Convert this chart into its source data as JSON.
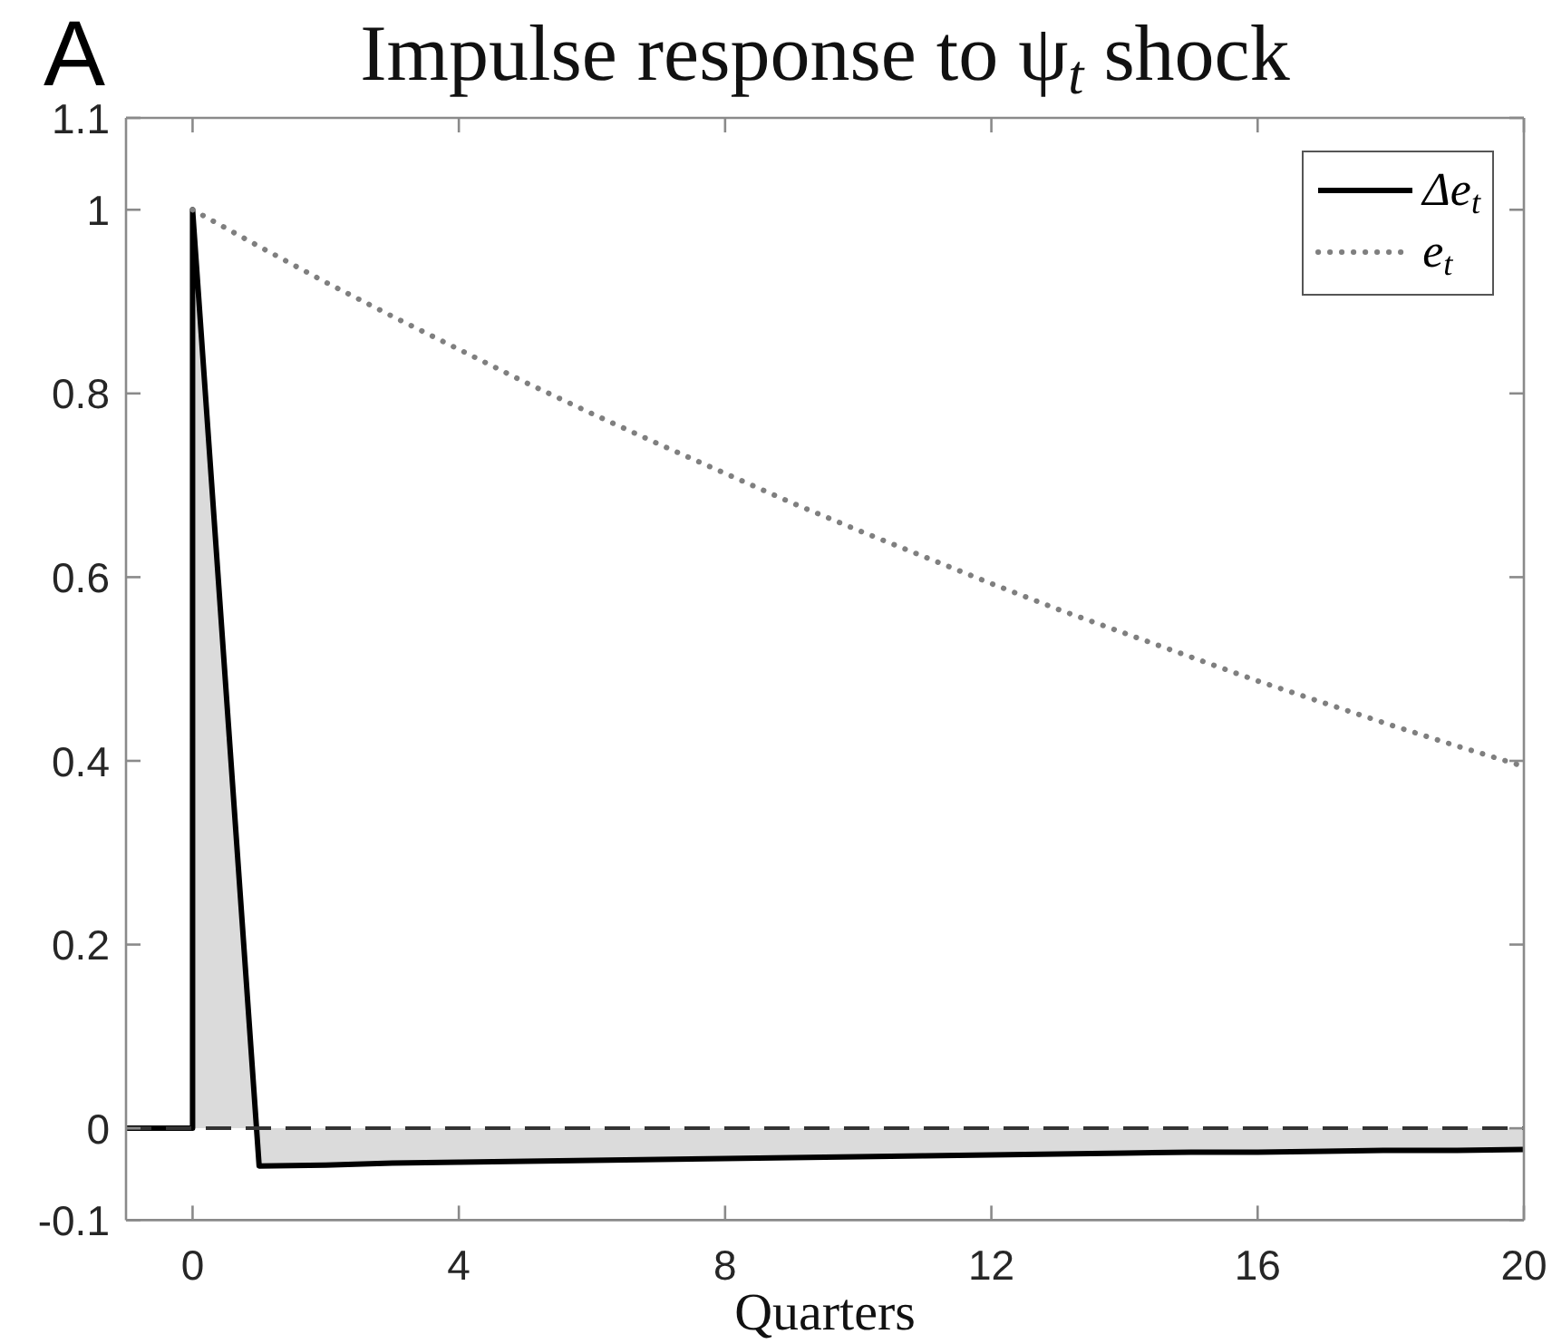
{
  "chart_data": {
    "type": "line",
    "title": "Impulse response to ψ$_{t}$ shock",
    "xlabel": "Quarters",
    "annotations": [
      "A"
    ],
    "series": [
      {
        "name": "Δe$_{t}$",
        "type": "area",
        "color": "#000000",
        "line_style": "solid",
        "x": [
          -1,
          0,
          0,
          1,
          2,
          3,
          4,
          5,
          6,
          7,
          8,
          9,
          10,
          11,
          12,
          13,
          14,
          15,
          16,
          17,
          18,
          19,
          20
        ],
        "values": [
          0,
          0,
          1,
          -0.041,
          -0.04,
          -0.038,
          -0.037,
          -0.036,
          -0.035,
          -0.034,
          -0.033,
          -0.032,
          -0.031,
          -0.03,
          -0.029,
          -0.028,
          -0.027,
          -0.026,
          -0.026,
          -0.025,
          -0.024,
          -0.024,
          -0.023
        ]
      },
      {
        "name": "e$_{t}$",
        "color": "#7f7f7f",
        "line_style": "dotted",
        "x": [
          0,
          1,
          2,
          3,
          4,
          5,
          6,
          7,
          8,
          9,
          10,
          11,
          12,
          13,
          14,
          15,
          16,
          17,
          18,
          19,
          20
        ],
        "values": [
          1,
          0.96,
          0.921,
          0.884,
          0.848,
          0.812,
          0.778,
          0.745,
          0.713,
          0.681,
          0.651,
          0.622,
          0.593,
          0.565,
          0.539,
          0.513,
          0.487,
          0.463,
          0.439,
          0.416,
          0.394
        ]
      }
    ],
    "xlim": [
      -1,
      20
    ],
    "xticks": [
      0,
      4,
      8,
      12,
      16,
      20
    ],
    "ylim": [
      -0.1,
      1.1
    ],
    "yticks": [
      -0.1,
      0,
      0.2,
      0.4,
      0.6,
      0.8,
      1,
      1.1
    ],
    "ref_lines": [
      {
        "axis": "y",
        "value": 0,
        "color": "#333333",
        "line_style": "dashed"
      }
    ],
    "legend": "top right"
  }
}
